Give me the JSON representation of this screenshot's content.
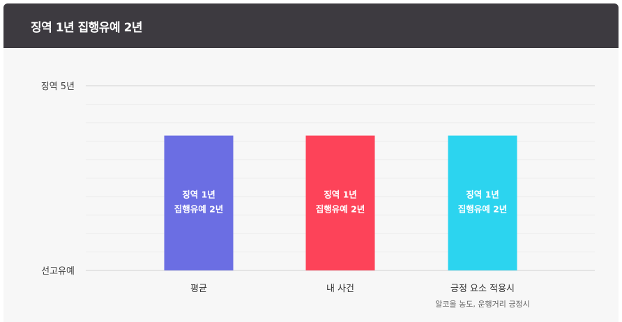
{
  "header": {
    "title": "징역 1년 집행유예 2년"
  },
  "chart_data": {
    "type": "bar",
    "title": "징역 1년 집행유예 2년",
    "y_axis": {
      "levels": [
        "선고유예",
        "징역 5년"
      ],
      "grid": true
    },
    "categories": [
      "평균",
      "내 사건",
      "긍정 요소 적용시"
    ],
    "category_subtitles": [
      "",
      "",
      "알코올 농도, 운행거리 긍정시"
    ],
    "value_fraction": [
      0.73,
      0.73,
      0.73
    ],
    "bar_labels": [
      [
        "징역 1년",
        "집행유예 2년"
      ],
      [
        "징역 1년",
        "집행유예 2년"
      ],
      [
        "징역 1년",
        "집행유예 2년"
      ]
    ],
    "colors": [
      "#6b6ee3",
      "#fd4359",
      "#2cd4ef"
    ]
  }
}
